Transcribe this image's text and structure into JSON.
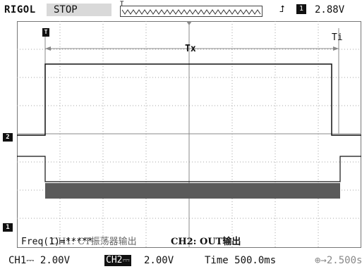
{
  "header": {
    "brand": "RIGOL",
    "status": "STOP",
    "trigger_position_marker": "T",
    "trigger_edge_icon": "rising-edge-icon",
    "trigger_channel": "1",
    "trigger_level": "2.88V"
  },
  "screen": {
    "cursor_left_marker": "T",
    "period_label": "Tx",
    "right_label": "Ti",
    "ch2_marker": "2",
    "ch1_marker": "1",
    "ch1_description": "CH1: CT振荡器输出",
    "ch2_description": "CH2: OUT输出",
    "frequency": "Freq(1)=*****"
  },
  "footer": {
    "ch1": "CH1⎓  2.00V",
    "ch2_tag": "CH2⎓",
    "ch2_value": "2.00V",
    "time": "Time 500.0ms",
    "offset": "⊕→2.500s"
  },
  "colors": {
    "background": "#ffffff",
    "trace": "#111111",
    "grid": "#9a9a9a",
    "noise": "#555555"
  }
}
